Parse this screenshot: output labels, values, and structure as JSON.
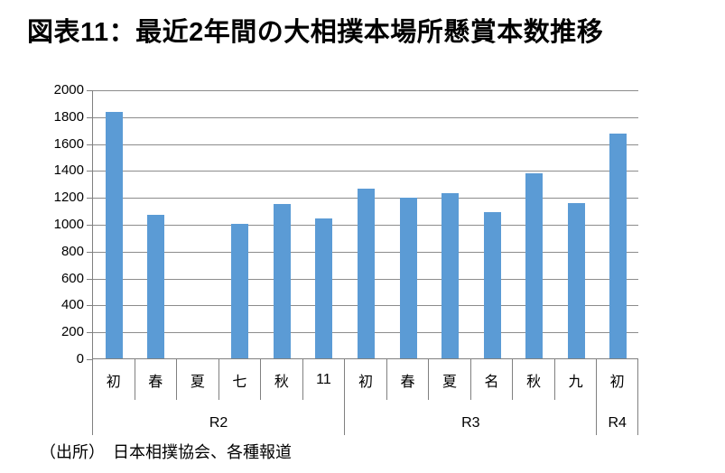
{
  "title": "図表11：最近2年間の大相撲本場所懸賞本数推移",
  "source": "（出所）　日本相撲協会、各種報道",
  "chart_data": {
    "type": "bar",
    "title": "図表11：最近2年間の大相撲本場所懸賞本数推移",
    "categories": [
      "初",
      "春",
      "夏",
      "七",
      "秋",
      "11",
      "初",
      "春",
      "夏",
      "名",
      "秋",
      "九",
      "初"
    ],
    "groups": [
      {
        "label": "R2",
        "span": 6
      },
      {
        "label": "R3",
        "span": 6
      },
      {
        "label": "R4",
        "span": 1
      }
    ],
    "values": [
      1830,
      1065,
      0,
      1000,
      1150,
      1040,
      1265,
      1195,
      1225,
      1090,
      1375,
      1155,
      1670
    ],
    "xlabel": "",
    "ylabel": "",
    "ylim": [
      0,
      2000
    ],
    "y_ticks": [
      0,
      200,
      400,
      600,
      800,
      1000,
      1200,
      1400,
      1600,
      1800,
      2000
    ],
    "grid": true,
    "legend": false,
    "bar_color": "#5b9bd5",
    "grid_color": "#8c8c8c",
    "axis_color": "#808080",
    "note": "夏(R2) tournament value is 0 (no bar shown)"
  }
}
